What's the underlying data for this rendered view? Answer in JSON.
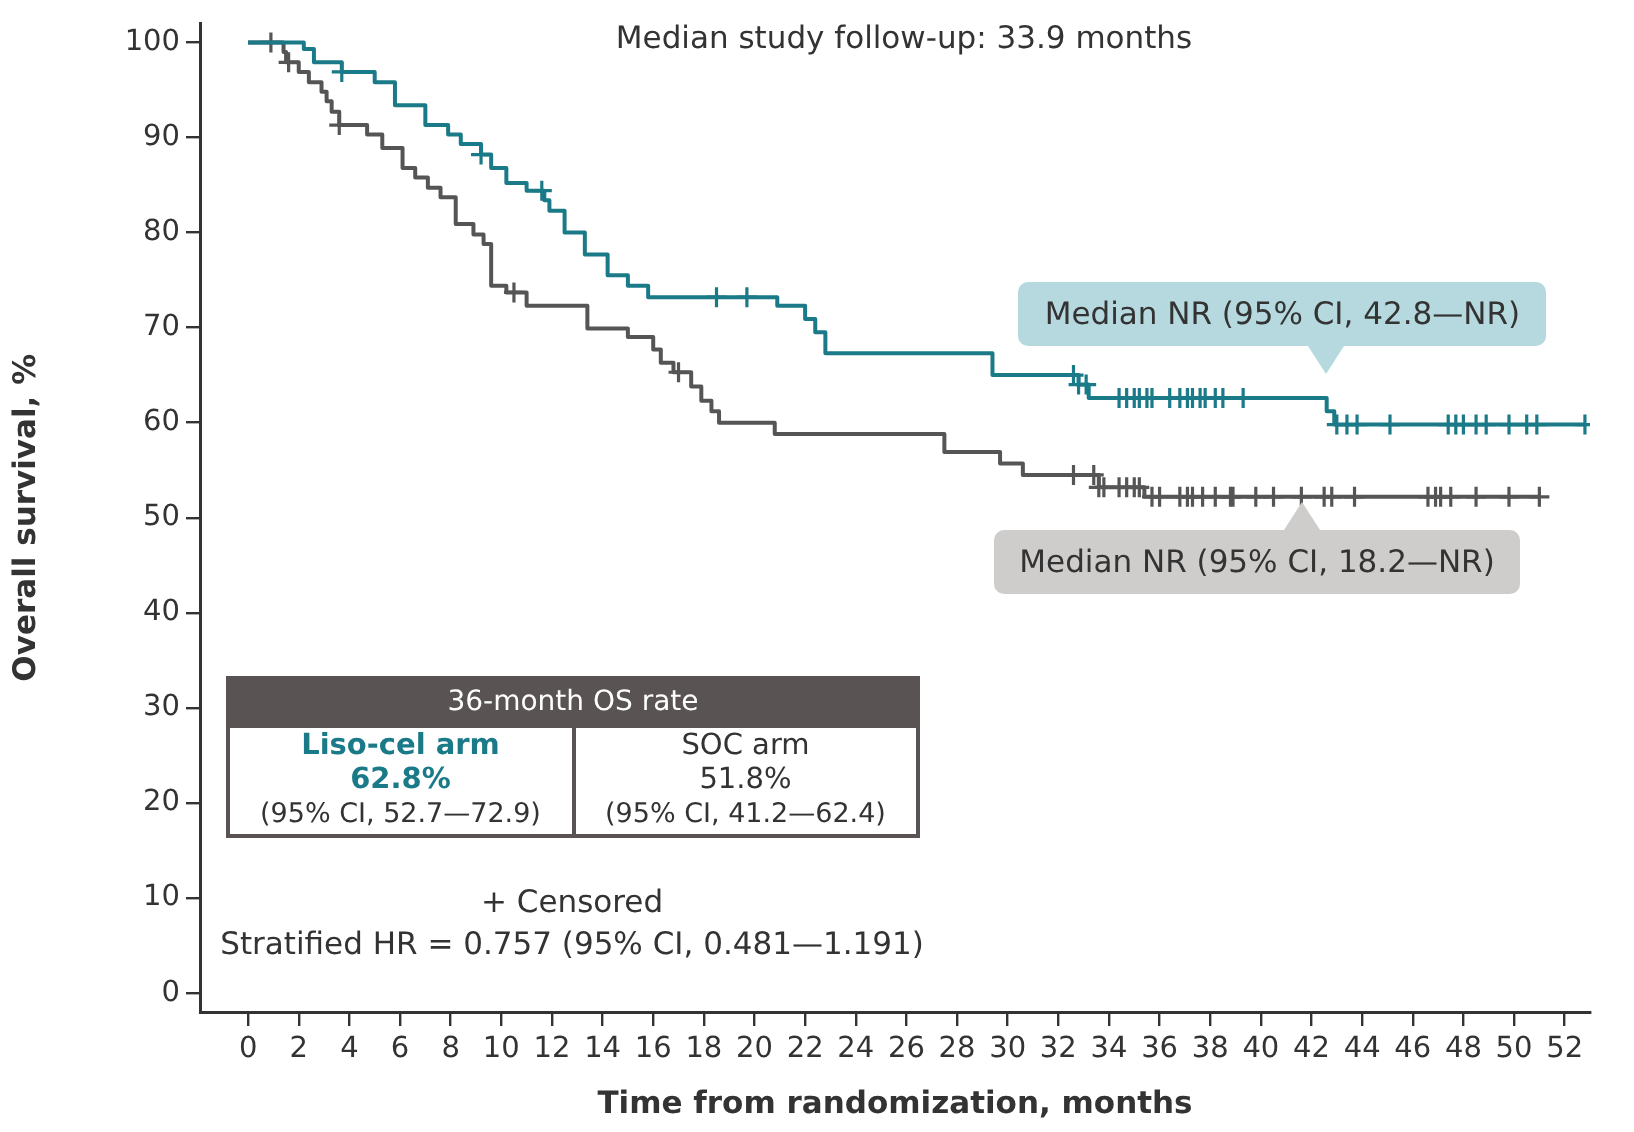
{
  "chart_data": {
    "type": "step",
    "xlabel": "Time from randomization, months",
    "ylabel": "Overall survival, %",
    "xlim": [
      -1.9,
      53
    ],
    "ylim": [
      -2,
      102
    ],
    "xticks": [
      0,
      2,
      4,
      6,
      8,
      10,
      12,
      14,
      16,
      18,
      20,
      22,
      24,
      26,
      28,
      30,
      32,
      34,
      36,
      38,
      40,
      42,
      44,
      46,
      48,
      50,
      52
    ],
    "yticks": [
      0,
      10,
      20,
      30,
      40,
      50,
      60,
      70,
      80,
      90,
      100
    ],
    "grid": false,
    "series": [
      {
        "color": "#1b7a88",
        "x": [
          0,
          2.2,
          2.6,
          3.7,
          5.0,
          5.8,
          7.0,
          7.9,
          8.4,
          9.2,
          9.6,
          10.2,
          11.0,
          11.7,
          11.9,
          12.5,
          13.3,
          14.2,
          15.0,
          15.8,
          20.9,
          22.0,
          22.4,
          22.8,
          29.4,
          32.8,
          33.2,
          42.6,
          42.9,
          52.8
        ],
        "values": [
          100,
          99.3,
          97.9,
          96.9,
          95.8,
          93.4,
          91.3,
          90.3,
          89.3,
          88.2,
          86.8,
          85.2,
          84.4,
          83.4,
          82.3,
          80.0,
          77.7,
          75.5,
          74.4,
          73.2,
          72.3,
          70.9,
          69.5,
          67.3,
          65.0,
          64.0,
          62.6,
          61.2,
          59.8,
          59.8
        ]
      },
      {
        "color": "#555555",
        "x": [
          0,
          1.4,
          1.5,
          2.0,
          2.4,
          2.9,
          3.1,
          3.3,
          3.6,
          4.7,
          5.3,
          6.1,
          6.6,
          7.1,
          7.6,
          8.2,
          8.9,
          9.3,
          9.6,
          10.2,
          11.0,
          13.4,
          15.0,
          16.0,
          16.3,
          16.8,
          17.5,
          17.9,
          18.3,
          18.6,
          20.8,
          27.5,
          29.7,
          30.6,
          33.6,
          35.4,
          51.0
        ],
        "values": [
          100,
          99.0,
          97.9,
          96.9,
          95.8,
          94.8,
          93.8,
          92.7,
          91.3,
          90.3,
          88.9,
          86.8,
          85.8,
          84.7,
          83.7,
          80.9,
          79.8,
          78.8,
          74.4,
          73.7,
          72.3,
          69.9,
          69.0,
          67.7,
          66.3,
          65.3,
          63.8,
          62.3,
          61.2,
          60.0,
          58.8,
          56.9,
          55.7,
          54.5,
          53.2,
          52.2,
          52.2
        ]
      },
      {
        "type": "scatter",
        "marker": "cross",
        "color": "#1b7a88",
        "x": [
          3.7,
          9.2,
          11.6,
          18.5,
          19.7,
          32.6,
          32.8,
          33.1,
          34.4,
          34.7,
          35.0,
          35.2,
          35.5,
          35.7,
          36.4,
          36.8,
          37.1,
          37.3,
          37.6,
          37.8,
          38.2,
          38.5,
          39.3,
          43.0,
          43.4,
          43.8,
          45.1,
          47.4,
          47.7,
          48.0,
          48.5,
          48.9,
          49.8,
          50.5,
          50.9,
          52.8
        ],
        "values": [
          96.9,
          88.2,
          84.4,
          73.2,
          73.2,
          65.0,
          64.0,
          64.0,
          62.6,
          62.6,
          62.6,
          62.6,
          62.6,
          62.6,
          62.6,
          62.6,
          62.6,
          62.6,
          62.6,
          62.6,
          62.6,
          62.6,
          62.6,
          59.8,
          59.8,
          59.8,
          59.8,
          59.8,
          59.8,
          59.8,
          59.8,
          59.8,
          59.8,
          59.8,
          59.8,
          59.8
        ]
      },
      {
        "type": "scatter",
        "marker": "cross",
        "color": "#555555",
        "x": [
          0.9,
          1.6,
          3.6,
          10.5,
          17.0,
          32.6,
          33.4,
          33.6,
          33.8,
          34.4,
          34.7,
          35.0,
          35.2,
          35.7,
          36.0,
          36.8,
          37.1,
          37.3,
          37.7,
          38.2,
          38.8,
          38.9,
          39.8,
          40.5,
          41.6,
          42.5,
          42.8,
          43.7,
          46.6,
          46.9,
          47.1,
          47.5,
          48.5,
          49.8,
          51.0
        ],
        "values": [
          100,
          97.9,
          91.3,
          73.7,
          65.3,
          54.5,
          54.5,
          53.2,
          53.2,
          53.2,
          53.2,
          53.2,
          53.2,
          52.2,
          52.2,
          52.2,
          52.2,
          52.2,
          52.2,
          52.2,
          52.2,
          52.2,
          52.2,
          52.2,
          52.2,
          52.2,
          52.2,
          52.2,
          52.2,
          52.2,
          52.2,
          52.2,
          52.2,
          52.2,
          52.2
        ]
      }
    ],
    "annotations": [
      "Median study follow-up: 33.9 months",
      {
        "text": "Median NR (95% CI, 42.8—NR)",
        "x": 42.6,
        "y": 62.6
      },
      {
        "text": "Median NR (95% CI, 18.2—NR)",
        "x": 41.6,
        "y": 52.2
      },
      "36-month OS rate",
      "Liso-cel arm",
      "62.8%",
      "(95% CI, 52.7—72.9)",
      "SOC arm",
      "51.8%",
      "(95% CI, 41.2—62.4)",
      "+ Censored",
      "Stratified HR = 0.757 (95% CI, 0.481—1.191)"
    ]
  }
}
